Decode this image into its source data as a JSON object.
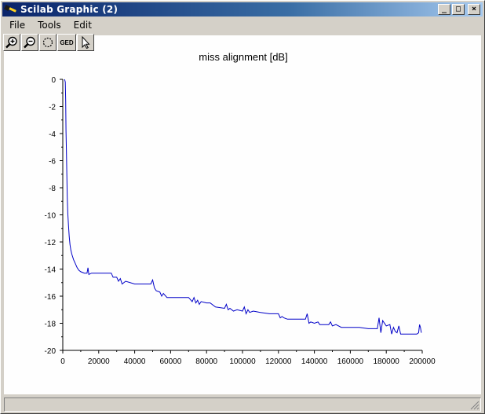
{
  "window": {
    "title": "Scilab Graphic (2)",
    "minimize_symbol": "_",
    "maximize_symbol": "□",
    "close_symbol": "×"
  },
  "menu": {
    "items": [
      "File",
      "Tools",
      "Edit"
    ]
  },
  "toolbar": {
    "buttons": [
      {
        "name": "zoom-in",
        "icon": "zoom-in-icon"
      },
      {
        "name": "zoom-out",
        "icon": "zoom-out-icon"
      },
      {
        "name": "rotate",
        "icon": "rotate-icon"
      },
      {
        "name": "ged",
        "label": "GED"
      },
      {
        "name": "select",
        "icon": "arrow-cursor-icon"
      }
    ]
  },
  "chart_data": {
    "type": "line",
    "title": "miss alignment [dB]",
    "xlabel": "",
    "ylabel": "",
    "xlim": [
      0,
      200000
    ],
    "ylim": [
      -20,
      0
    ],
    "xticks": [
      0,
      20000,
      40000,
      60000,
      80000,
      100000,
      120000,
      140000,
      160000,
      180000,
      200000
    ],
    "xtick_labels": [
      "0",
      "20000",
      "40000",
      "60000",
      "80000",
      "100000",
      "120000",
      "140000",
      "160000",
      "180000",
      "200000"
    ],
    "yticks": [
      0,
      -2,
      -4,
      -6,
      -8,
      -10,
      -12,
      -14,
      -16,
      -18,
      -20
    ],
    "ytick_labels": [
      "0",
      "-2",
      "-4",
      "-6",
      "-8",
      "-10",
      "-12",
      "-14",
      "-16",
      "-18",
      "-20"
    ],
    "grid": false,
    "color": "#0000c8",
    "series": [
      {
        "name": "",
        "x": [
          1000,
          1400,
          1600,
          1800,
          2000,
          2200,
          2500,
          2800,
          3200,
          3600,
          4000,
          4500,
          5000,
          6000,
          7000,
          8000,
          9000,
          10000,
          12000,
          13500,
          14000,
          14500,
          16000,
          20000,
          25000,
          27000,
          28000,
          30000,
          31000,
          32000,
          33000,
          35000,
          40000,
          45000,
          49000,
          50000,
          51000,
          52000,
          54000,
          55000,
          56000,
          58000,
          60000,
          62000,
          70000,
          72000,
          73000,
          74000,
          75000,
          76000,
          77000,
          80000,
          82000,
          85000,
          90000,
          91000,
          92000,
          93000,
          95000,
          97000,
          100000,
          101000,
          102000,
          103000,
          104000,
          106000,
          110000,
          115000,
          120000,
          121000,
          122000,
          123000,
          125000,
          130000,
          135000,
          136000,
          137000,
          138000,
          140000,
          142000,
          143000,
          145000,
          148000,
          149000,
          150000,
          152000,
          155000,
          160000,
          165000,
          170000,
          172000,
          175000,
          176000,
          177000,
          178000,
          180000,
          182000,
          183000,
          184000,
          185000,
          186000,
          187000,
          188000,
          190000,
          195000,
          197000,
          198000,
          198500,
          199000,
          199500
        ],
        "y": [
          0,
          -0.2,
          -1.6,
          -3.8,
          -5.2,
          -6.5,
          -8.7,
          -9.9,
          -10.8,
          -11.6,
          -12.2,
          -12.6,
          -12.9,
          -13.3,
          -13.6,
          -13.9,
          -14.1,
          -14.2,
          -14.3,
          -14.3,
          -13.9,
          -14.4,
          -14.3,
          -14.3,
          -14.3,
          -14.3,
          -14.6,
          -14.6,
          -14.9,
          -14.7,
          -15.1,
          -14.9,
          -15.1,
          -15.1,
          -15.1,
          -14.8,
          -15.4,
          -15.6,
          -15.7,
          -16.0,
          -15.8,
          -16.1,
          -16.1,
          -16.1,
          -16.1,
          -16.4,
          -16.1,
          -16.5,
          -16.3,
          -16.6,
          -16.4,
          -16.5,
          -16.5,
          -16.8,
          -16.9,
          -16.6,
          -17.0,
          -16.9,
          -17.1,
          -17.0,
          -17.1,
          -16.8,
          -17.3,
          -17.0,
          -17.2,
          -17.1,
          -17.2,
          -17.3,
          -17.3,
          -17.6,
          -17.5,
          -17.6,
          -17.7,
          -17.7,
          -17.7,
          -17.3,
          -18.0,
          -17.9,
          -18.0,
          -17.9,
          -18.1,
          -18.1,
          -18.1,
          -17.9,
          -18.2,
          -18.1,
          -18.3,
          -18.3,
          -18.3,
          -18.4,
          -18.4,
          -18.4,
          -17.6,
          -18.7,
          -17.8,
          -18.2,
          -18.1,
          -18.8,
          -18.3,
          -18.6,
          -18.7,
          -18.2,
          -18.8,
          -18.8,
          -18.8,
          -18.8,
          -18.7,
          -18.1,
          -18.3,
          -18.7
        ]
      }
    ]
  }
}
